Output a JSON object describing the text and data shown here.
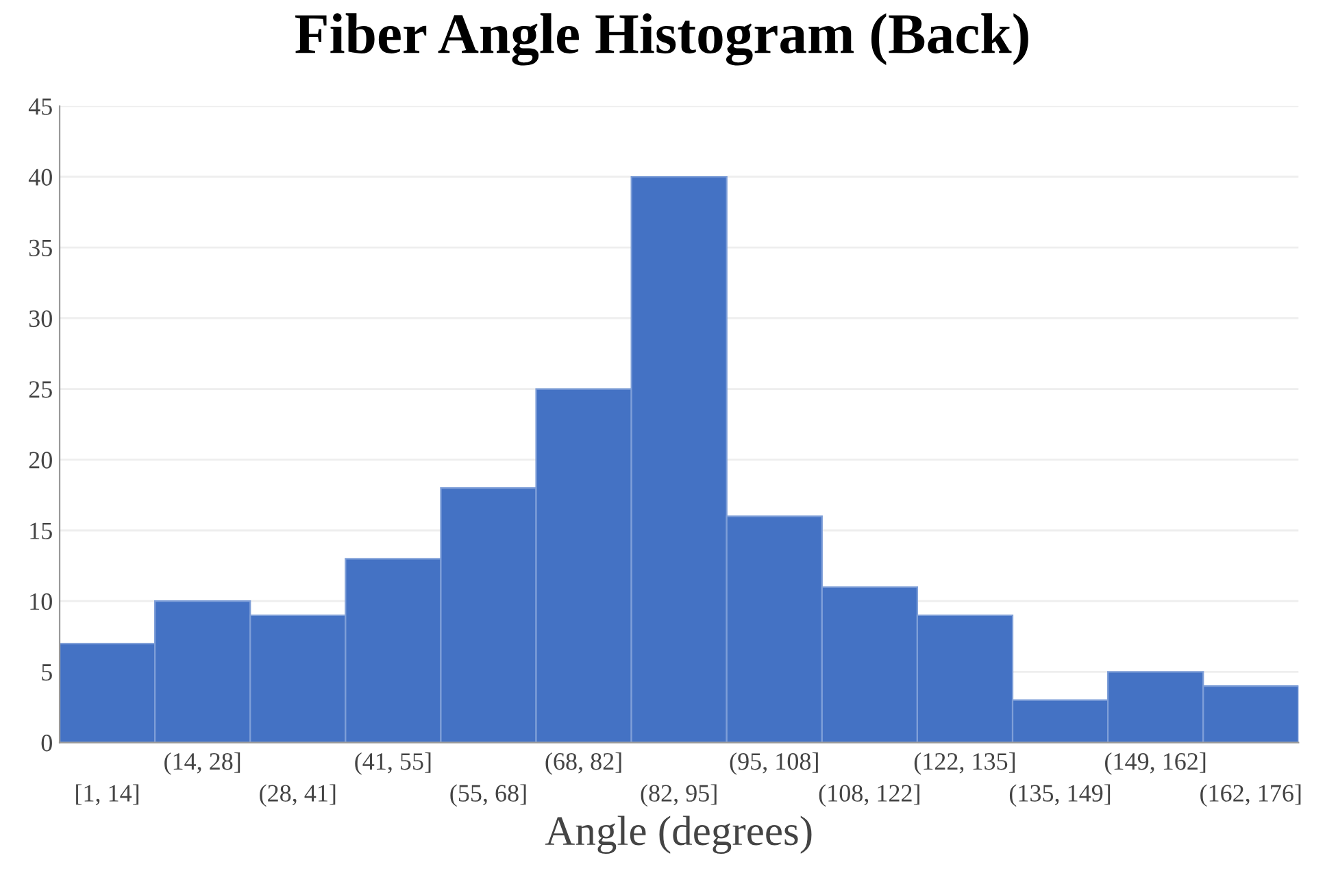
{
  "chart_data": {
    "type": "bar",
    "title": "Fiber Angle Histogram (Back)",
    "xlabel": "Angle (degrees)",
    "categories": [
      "[1, 14]",
      "(14, 28]",
      "(28, 41]",
      "(41, 55]",
      "(55, 68]",
      "(68, 82]",
      "(82, 95]",
      "(95, 108]",
      "(108, 122]",
      "(122, 135]",
      "(135, 149]",
      "(149, 162]",
      "(162, 176]"
    ],
    "values": [
      7,
      10,
      9,
      13,
      18,
      25,
      40,
      16,
      11,
      9,
      3,
      5,
      4
    ],
    "color": "#4472c4",
    "ylim": [
      0,
      45
    ],
    "yticks": [
      0,
      5,
      10,
      15,
      20,
      25,
      30,
      35,
      40,
      45
    ],
    "grid": "y"
  }
}
